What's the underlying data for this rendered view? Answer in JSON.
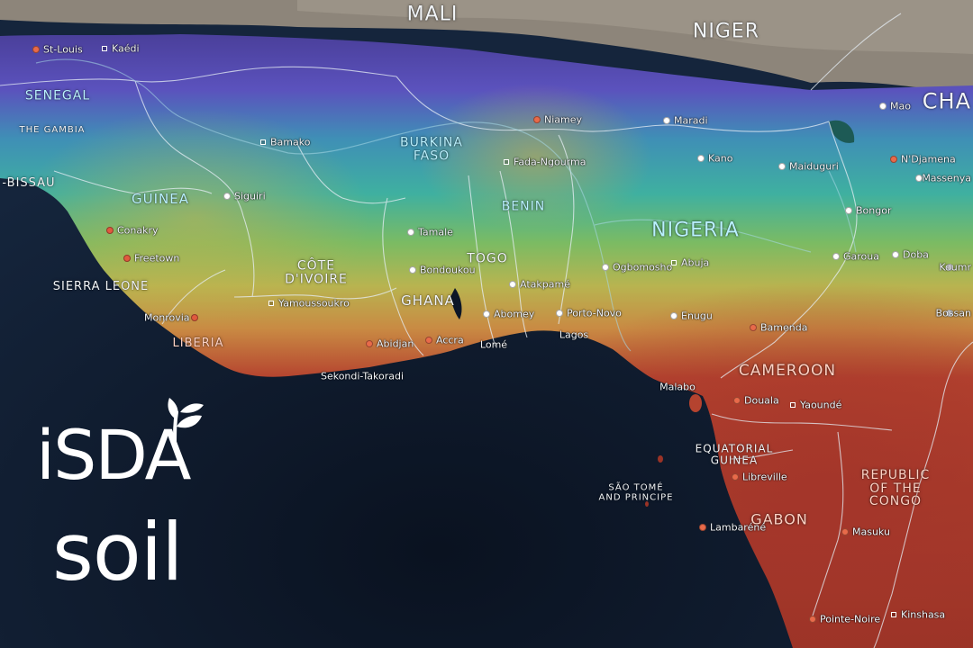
{
  "map": {
    "countries": [
      {
        "id": "mali",
        "label": "MALI",
        "style": "white",
        "size": 22
      },
      {
        "id": "niger",
        "label": "NIGER",
        "style": "white",
        "size": 22
      },
      {
        "id": "chad",
        "label": "CHA",
        "style": "white",
        "size": 24
      },
      {
        "id": "senegal",
        "label": "SENEGAL",
        "style": "cyan",
        "size": 14
      },
      {
        "id": "the-gambia",
        "label": "THE GAMBIA",
        "style": "white",
        "size": 10
      },
      {
        "id": "guinea-bissau",
        "label": "-BISSAU",
        "style": "white",
        "size": 13
      },
      {
        "id": "guinea",
        "label": "GUINEA",
        "style": "cyan",
        "size": 15
      },
      {
        "id": "burkina-faso",
        "label": "BURKINA\nFASO",
        "style": "cyan",
        "size": 14
      },
      {
        "id": "benin",
        "label": "BENIN",
        "style": "cyan",
        "size": 14
      },
      {
        "id": "nigeria",
        "label": "NIGERIA",
        "style": "cyan",
        "size": 22
      },
      {
        "id": "togo",
        "label": "TOGO",
        "style": "white",
        "size": 14
      },
      {
        "id": "cote-divoire",
        "label": "CÔTE\nD'IVOIRE",
        "style": "white",
        "size": 14
      },
      {
        "id": "ghana",
        "label": "GHANA",
        "style": "white",
        "size": 15
      },
      {
        "id": "sierra-leone",
        "label": "SIERRA LEONE",
        "style": "white",
        "size": 13
      },
      {
        "id": "liberia",
        "label": "LIBERIA",
        "style": "pink",
        "size": 13
      },
      {
        "id": "cameroon",
        "label": "CAMEROON",
        "style": "pink",
        "size": 17
      },
      {
        "id": "equatorial-guinea",
        "label": "EQUATORIAL\nGUINEA",
        "style": "white",
        "size": 12
      },
      {
        "id": "sao-tome",
        "label": "SÃO TOMÉ\nAND PRINCIPE",
        "style": "white",
        "size": 10
      },
      {
        "id": "gabon",
        "label": "GABON",
        "style": "pink",
        "size": 16
      },
      {
        "id": "republic-of-the-congo",
        "label": "REPUBLIC\nOF THE\nCONGO",
        "style": "pink",
        "size": 14
      }
    ],
    "cities": [
      {
        "id": "st-louis",
        "label": "St-Louis"
      },
      {
        "id": "kaedi",
        "label": "Kaédi"
      },
      {
        "id": "bamako",
        "label": "Bamako"
      },
      {
        "id": "siguiri",
        "label": "Siguiri"
      },
      {
        "id": "conakry",
        "label": "Conakry"
      },
      {
        "id": "freetown",
        "label": "Freetown"
      },
      {
        "id": "monrovia",
        "label": "Monrovia"
      },
      {
        "id": "yamoussoukro",
        "label": "Yamoussoukro"
      },
      {
        "id": "bondoukou",
        "label": "Bondoukou"
      },
      {
        "id": "tamale",
        "label": "Tamale"
      },
      {
        "id": "abidjan",
        "label": "Abidjan"
      },
      {
        "id": "sekondi-takoradi",
        "label": "Sekondi-Takoradi"
      },
      {
        "id": "accra",
        "label": "Accra"
      },
      {
        "id": "lome",
        "label": "Lomé"
      },
      {
        "id": "atakpame",
        "label": "Atakpamé"
      },
      {
        "id": "abomey",
        "label": "Abomey"
      },
      {
        "id": "porto-novo",
        "label": "Porto-Novo"
      },
      {
        "id": "lagos",
        "label": "Lagos"
      },
      {
        "id": "niamey",
        "label": "Niamey"
      },
      {
        "id": "fada-ngourma",
        "label": "Fada-Ngourma"
      },
      {
        "id": "maradi",
        "label": "Maradi"
      },
      {
        "id": "kano",
        "label": "Kano"
      },
      {
        "id": "maiduguri",
        "label": "Maiduguri"
      },
      {
        "id": "ndjamena",
        "label": "N'Djamena"
      },
      {
        "id": "mao",
        "label": "Mao"
      },
      {
        "id": "massenya",
        "label": "Massenya"
      },
      {
        "id": "bongor",
        "label": "Bongor"
      },
      {
        "id": "ogbomosho",
        "label": "Ogbomosho"
      },
      {
        "id": "abuja",
        "label": "Abuja"
      },
      {
        "id": "garoua",
        "label": "Garoua"
      },
      {
        "id": "doba",
        "label": "Doba"
      },
      {
        "id": "koumra",
        "label": "Koumr"
      },
      {
        "id": "bossangoa",
        "label": "Bossan"
      },
      {
        "id": "enugu",
        "label": "Enugu"
      },
      {
        "id": "bamenda",
        "label": "Bamenda"
      },
      {
        "id": "malabo",
        "label": "Malabo"
      },
      {
        "id": "douala",
        "label": "Douala"
      },
      {
        "id": "yaounde",
        "label": "Yaoundé"
      },
      {
        "id": "libreville",
        "label": "Libreville"
      },
      {
        "id": "lambarene",
        "label": "Lambaréné"
      },
      {
        "id": "masuku",
        "label": "Masuku"
      },
      {
        "id": "pointe-noire",
        "label": "Pointe-Noire"
      },
      {
        "id": "kinshasa",
        "label": "Kinshasa"
      }
    ]
  },
  "logo": {
    "line1": "iSDA",
    "line2": "soil"
  },
  "colors": {
    "ocean": "#0c1627",
    "desert": "#8f877c",
    "violet": "#5a4fb8",
    "teal": "#3fa7a8",
    "green": "#6fb56a",
    "yellow": "#c9b14b",
    "orange": "#c86a35",
    "red": "#a8372b"
  }
}
